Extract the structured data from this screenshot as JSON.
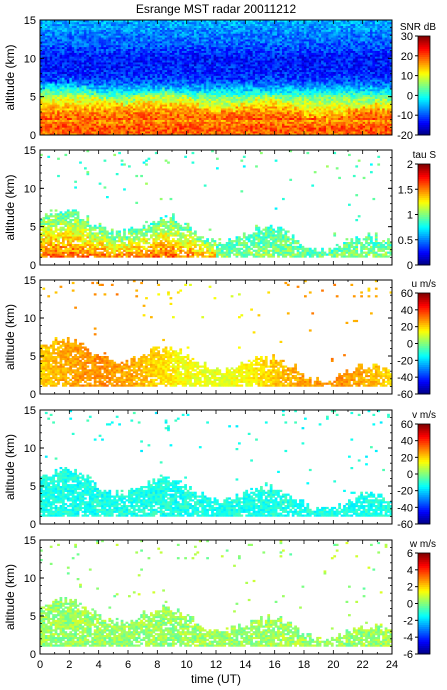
{
  "chart_data": [
    {
      "type": "heatmap",
      "title": "Esrange MST radar 20011212",
      "quantity": "SNR",
      "colorbar_label": "SNR dB",
      "ylabel": "altitude (km)",
      "xlabel": "",
      "xlim": [
        0,
        24
      ],
      "ylim": [
        0,
        15
      ],
      "clim": [
        -20,
        30
      ],
      "yticks": [
        0,
        5,
        10,
        15
      ],
      "cticks": [
        -20,
        -10,
        0,
        10,
        20,
        30
      ],
      "profile_altitude_km": [
        0,
        1,
        2,
        3,
        4,
        5,
        6,
        7,
        8,
        10,
        12,
        15
      ],
      "profile_values": [
        18,
        20,
        16,
        13,
        9,
        4,
        -4,
        -10,
        -12,
        -13,
        -9,
        -5
      ]
    },
    {
      "type": "heatmap",
      "quantity": "tau",
      "colorbar_label": "tau S",
      "ylabel": "altitude (km)",
      "xlabel": "",
      "xlim": [
        0,
        24
      ],
      "ylim": [
        0,
        15
      ],
      "clim": [
        0,
        2
      ],
      "yticks": [
        0,
        5,
        10,
        15
      ],
      "cticks": [
        0,
        0.5,
        1,
        1.5,
        2
      ],
      "typical_value": 0.9
    },
    {
      "type": "heatmap",
      "quantity": "u",
      "colorbar_label": "u m/s",
      "ylabel": "altitude (km)",
      "xlabel": "",
      "xlim": [
        0,
        24
      ],
      "ylim": [
        0,
        15
      ],
      "clim": [
        -60,
        60
      ],
      "yticks": [
        0,
        5,
        10,
        15
      ],
      "cticks": [
        -60,
        -40,
        -20,
        0,
        20,
        40,
        60
      ],
      "typical_value": 22
    },
    {
      "type": "heatmap",
      "quantity": "v",
      "colorbar_label": "v m/s",
      "ylabel": "altitude (km)",
      "xlabel": "",
      "xlim": [
        0,
        24
      ],
      "ylim": [
        0,
        15
      ],
      "clim": [
        -60,
        60
      ],
      "yticks": [
        0,
        5,
        10,
        15
      ],
      "cticks": [
        -60,
        -40,
        -20,
        0,
        20,
        40,
        60
      ],
      "typical_value": -10
    },
    {
      "type": "heatmap",
      "quantity": "w",
      "colorbar_label": "w m/s",
      "ylabel": "altitude (km)",
      "xlabel": "time (UT)",
      "xlim": [
        0,
        24
      ],
      "ylim": [
        0,
        15
      ],
      "clim": [
        -6,
        6
      ],
      "yticks": [
        0,
        5,
        10,
        15
      ],
      "cticks": [
        -6,
        -4,
        -2,
        0,
        2,
        4,
        6
      ],
      "xticks": [
        0,
        2,
        4,
        6,
        8,
        10,
        12,
        14,
        16,
        18,
        20,
        22,
        24
      ],
      "typical_value": 0.3
    }
  ]
}
